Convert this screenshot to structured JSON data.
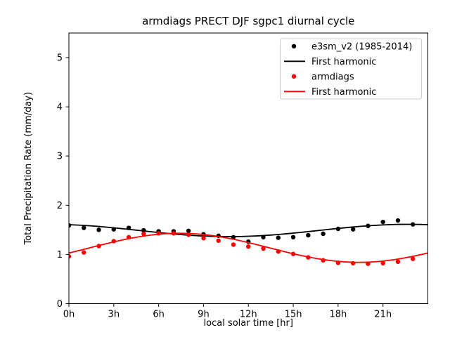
{
  "chart_data": {
    "type": "scatter",
    "title": "armdiags PRECT DJF sgpc1 diurnal cycle",
    "xlabel": "local solar time [hr]",
    "ylabel": "Total Precipitation Rate (mm/day)",
    "xlim": [
      0,
      24
    ],
    "ylim": [
      0,
      5.5
    ],
    "grid": false,
    "legend_position": "upper right",
    "xticks": {
      "positions": [
        0,
        3,
        6,
        9,
        12,
        15,
        18,
        21
      ],
      "labels": [
        "0h",
        "3h",
        "6h",
        "9h",
        "12h",
        "15h",
        "18h",
        "21h"
      ]
    },
    "yticks": {
      "positions": [
        0,
        1,
        2,
        3,
        4,
        5
      ],
      "labels": [
        "0",
        "1",
        "2",
        "3",
        "4",
        "5"
      ]
    },
    "series": [
      {
        "name": "e3sm_v2 (1985-2014)",
        "kind": "scatter",
        "color": "#000000",
        "x": [
          0,
          1,
          2,
          3,
          4,
          5,
          6,
          7,
          8,
          9,
          10,
          11,
          12,
          13,
          14,
          15,
          16,
          17,
          18,
          19,
          20,
          21,
          22,
          23
        ],
        "values": [
          1.59,
          1.54,
          1.5,
          1.51,
          1.54,
          1.49,
          1.47,
          1.47,
          1.48,
          1.41,
          1.38,
          1.35,
          1.26,
          1.35,
          1.34,
          1.35,
          1.39,
          1.42,
          1.52,
          1.51,
          1.58,
          1.66,
          1.69,
          1.61
        ]
      },
      {
        "name": "First harmonic",
        "kind": "line",
        "color": "#000000",
        "first_harmonic": {
          "mean": 1.487,
          "amplitude": 0.125,
          "peak_hour": 22.7
        },
        "x": [
          0,
          1,
          2,
          3,
          4,
          5,
          6,
          7,
          8,
          9,
          10,
          11,
          12,
          13,
          14,
          15,
          16,
          17,
          18,
          19,
          20,
          21,
          22,
          23,
          24
        ],
        "values": [
          1.61,
          1.59,
          1.57,
          1.54,
          1.51,
          1.48,
          1.45,
          1.42,
          1.39,
          1.37,
          1.36,
          1.36,
          1.37,
          1.38,
          1.41,
          1.43,
          1.46,
          1.5,
          1.53,
          1.56,
          1.58,
          1.6,
          1.61,
          1.61,
          1.61
        ]
      },
      {
        "name": "armdiags",
        "kind": "scatter",
        "color": "#ff0000",
        "x": [
          0,
          1,
          2,
          3,
          4,
          5,
          6,
          7,
          8,
          9,
          10,
          11,
          12,
          13,
          14,
          15,
          16,
          17,
          18,
          19,
          20,
          21,
          22,
          23
        ],
        "values": [
          0.96,
          1.04,
          1.17,
          1.27,
          1.35,
          1.42,
          1.43,
          1.43,
          1.4,
          1.33,
          1.28,
          1.2,
          1.16,
          1.12,
          1.06,
          1.01,
          0.94,
          0.88,
          0.83,
          0.82,
          0.81,
          0.82,
          0.85,
          0.91
        ]
      },
      {
        "name": "First harmonic",
        "kind": "line",
        "color": "#ff0000",
        "first_harmonic": {
          "mean": 1.135,
          "amplitude": 0.295,
          "peak_hour": 7.4
        },
        "x": [
          0,
          1,
          2,
          3,
          4,
          5,
          6,
          7,
          8,
          9,
          10,
          11,
          12,
          13,
          14,
          15,
          16,
          17,
          18,
          19,
          20,
          21,
          22,
          23,
          24
        ],
        "values": [
          1.03,
          1.1,
          1.18,
          1.25,
          1.32,
          1.37,
          1.41,
          1.43,
          1.43,
          1.4,
          1.36,
          1.31,
          1.24,
          1.17,
          1.09,
          1.01,
          0.95,
          0.9,
          0.86,
          0.84,
          0.84,
          0.87,
          0.91,
          0.96,
          1.03
        ]
      }
    ]
  }
}
